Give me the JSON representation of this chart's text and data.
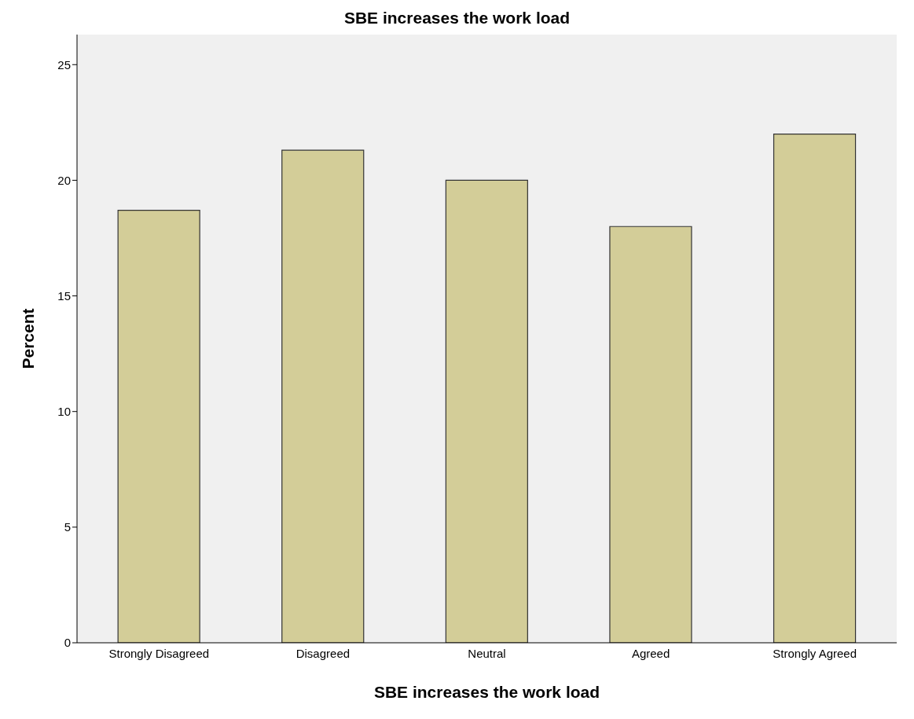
{
  "chart_data": {
    "type": "bar",
    "title": "SBE increases the work load",
    "xlabel": "SBE increases the work load",
    "ylabel": "Percent",
    "categories": [
      "Strongly Disagreed",
      "Disagreed",
      "Neutral",
      "Agreed",
      "Strongly Agreed"
    ],
    "values": [
      18.7,
      21.3,
      20.0,
      18.0,
      22.0
    ],
    "color": "#d3cd98",
    "ylim": [
      0,
      26.3
    ],
    "yticks": [
      0,
      5,
      10,
      15,
      20,
      25
    ],
    "grid": false,
    "legend": false
  }
}
